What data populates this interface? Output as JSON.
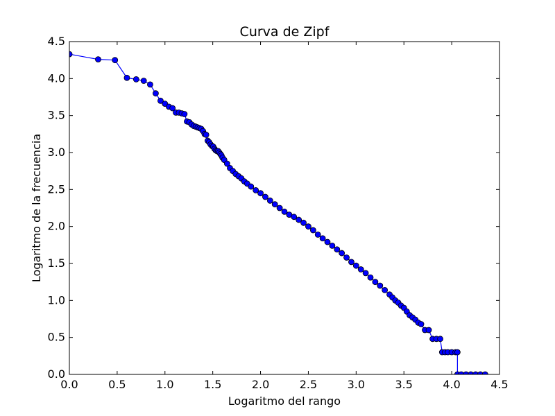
{
  "chart_data": {
    "type": "line",
    "title": "Curva de Zipf",
    "xlabel": "Logaritmo del rango",
    "ylabel": "Logaritmo de la frecuencia",
    "xlim": [
      0.0,
      4.5
    ],
    "ylim": [
      0.0,
      4.5
    ],
    "xticks": [
      "0.0",
      "0.5",
      "1.0",
      "1.5",
      "2.0",
      "2.5",
      "3.0",
      "3.5",
      "4.0",
      "4.5"
    ],
    "yticks": [
      "0.0",
      "0.5",
      "1.0",
      "1.5",
      "2.0",
      "2.5",
      "3.0",
      "3.5",
      "4.0",
      "4.5"
    ],
    "grid": false,
    "marker": "circle",
    "line_color": "#0000ff",
    "marker_edge_color": "#000000",
    "series": [
      {
        "x": [
          0.0,
          0.301,
          0.477,
          0.602,
          0.699,
          0.778,
          0.845,
          0.903,
          0.954,
          1.0,
          1.041,
          1.079,
          1.114,
          1.146,
          1.176,
          1.204,
          1.23,
          1.255,
          1.279,
          1.301,
          1.322,
          1.342,
          1.362,
          1.38,
          1.398,
          1.415,
          1.431,
          1.447,
          1.462,
          1.477,
          1.491,
          1.505,
          1.518,
          1.531,
          1.544,
          1.556,
          1.568,
          1.58,
          1.591,
          1.602,
          1.62,
          1.65,
          1.68,
          1.71,
          1.74,
          1.77,
          1.8,
          1.83,
          1.86,
          1.9,
          1.95,
          2.0,
          2.05,
          2.1,
          2.15,
          2.2,
          2.25,
          2.3,
          2.35,
          2.4,
          2.45,
          2.5,
          2.55,
          2.6,
          2.65,
          2.7,
          2.75,
          2.8,
          2.85,
          2.9,
          2.95,
          3.0,
          3.05,
          3.1,
          3.15,
          3.2,
          3.25,
          3.3,
          3.35,
          3.38,
          3.41,
          3.44,
          3.47,
          3.5,
          3.53,
          3.56,
          3.59,
          3.62,
          3.65,
          3.68,
          3.72,
          3.76,
          3.8,
          3.84,
          3.88,
          3.9,
          3.93,
          3.96,
          4.0,
          4.04,
          4.06,
          4.06,
          4.1,
          4.15,
          4.2,
          4.25,
          4.3,
          4.35
        ],
        "y": [
          4.33,
          4.26,
          4.25,
          4.01,
          3.99,
          3.97,
          3.92,
          3.8,
          3.7,
          3.66,
          3.62,
          3.6,
          3.54,
          3.54,
          3.53,
          3.52,
          3.42,
          3.41,
          3.38,
          3.36,
          3.35,
          3.34,
          3.33,
          3.32,
          3.29,
          3.25,
          3.24,
          3.16,
          3.14,
          3.11,
          3.09,
          3.08,
          3.05,
          3.03,
          3.02,
          3.02,
          3.0,
          2.98,
          2.96,
          2.93,
          2.9,
          2.85,
          2.79,
          2.75,
          2.71,
          2.68,
          2.65,
          2.61,
          2.58,
          2.54,
          2.49,
          2.45,
          2.4,
          2.35,
          2.3,
          2.25,
          2.2,
          2.16,
          2.13,
          2.09,
          2.05,
          2.0,
          1.95,
          1.89,
          1.84,
          1.79,
          1.74,
          1.69,
          1.64,
          1.58,
          1.52,
          1.47,
          1.42,
          1.37,
          1.31,
          1.25,
          1.2,
          1.14,
          1.08,
          1.04,
          1.0,
          0.97,
          0.93,
          0.9,
          0.85,
          0.8,
          0.77,
          0.74,
          0.7,
          0.68,
          0.6,
          0.6,
          0.48,
          0.48,
          0.48,
          0.3,
          0.3,
          0.3,
          0.3,
          0.3,
          0.3,
          0.0,
          0.0,
          0.0,
          0.0,
          0.0,
          0.0,
          0.0
        ]
      }
    ]
  }
}
